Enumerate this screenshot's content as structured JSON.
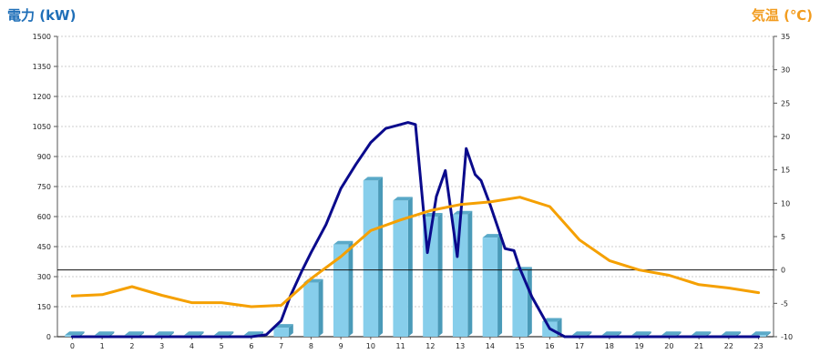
{
  "chart_data": {
    "type": "bar",
    "left_axis_title": "電力 (kW)",
    "right_axis_title": "気温 (℃)",
    "categories": [
      "0",
      "1",
      "2",
      "3",
      "4",
      "5",
      "6",
      "7",
      "8",
      "9",
      "10",
      "11",
      "12",
      "13",
      "14",
      "15",
      "16",
      "17",
      "18",
      "19",
      "20",
      "21",
      "22",
      "23"
    ],
    "y_left": {
      "min": 0,
      "max": 1500,
      "ticks": [
        0,
        150,
        300,
        450,
        600,
        750,
        900,
        1050,
        1200,
        1350,
        1500
      ]
    },
    "y_right": {
      "min": -10,
      "max": 35,
      "ticks": [
        -10,
        -5,
        0,
        5,
        10,
        15,
        20,
        25,
        30,
        35
      ]
    },
    "zero_line_right": 0,
    "series": [
      {
        "kind": "bar",
        "axis": "left",
        "color": "#87ceeb",
        "values": [
          8,
          8,
          8,
          8,
          8,
          8,
          8,
          45,
          270,
          460,
          780,
          680,
          600,
          610,
          495,
          330,
          75,
          8,
          8,
          8,
          8,
          8,
          8,
          8
        ]
      },
      {
        "kind": "line",
        "axis": "left",
        "color": "#0a0a8c",
        "x": [
          0,
          1,
          2,
          3,
          4,
          5,
          6,
          6.5,
          7,
          7.3,
          7.7,
          8,
          8.5,
          9,
          9.5,
          10,
          10.5,
          11,
          11.25,
          11.5,
          11.9,
          12.2,
          12.5,
          12.9,
          13.2,
          13.5,
          13.7,
          14,
          14.5,
          14.8,
          15,
          15.4,
          16,
          16.5,
          17,
          18,
          19,
          20,
          21,
          22,
          23
        ],
        "y": [
          0,
          0,
          0,
          0,
          0,
          0,
          0,
          10,
          80,
          200,
          330,
          420,
          560,
          740,
          860,
          970,
          1040,
          1060,
          1070,
          1060,
          420,
          700,
          830,
          400,
          940,
          810,
          780,
          660,
          440,
          430,
          340,
          200,
          40,
          0,
          0,
          0,
          0,
          0,
          0,
          0,
          0
        ]
      },
      {
        "kind": "line",
        "axis": "right",
        "color": "#f5a000",
        "x": [
          0,
          1,
          2,
          3,
          4,
          5,
          6,
          7,
          8,
          9,
          10,
          11,
          12,
          13,
          14,
          15,
          16,
          17,
          18,
          19,
          20,
          21,
          22,
          23
        ],
        "y": [
          -3.9,
          -3.7,
          -2.5,
          -3.8,
          -4.9,
          -4.9,
          -5.5,
          -5.3,
          -1.3,
          2,
          5.9,
          7.5,
          8.9,
          9.8,
          10.2,
          10.9,
          9.5,
          4.5,
          1.4,
          0,
          -0.8,
          -2.2,
          -2.7,
          -3.4
        ]
      }
    ],
    "grid": true,
    "grid_style": "dotted",
    "legend": false
  }
}
